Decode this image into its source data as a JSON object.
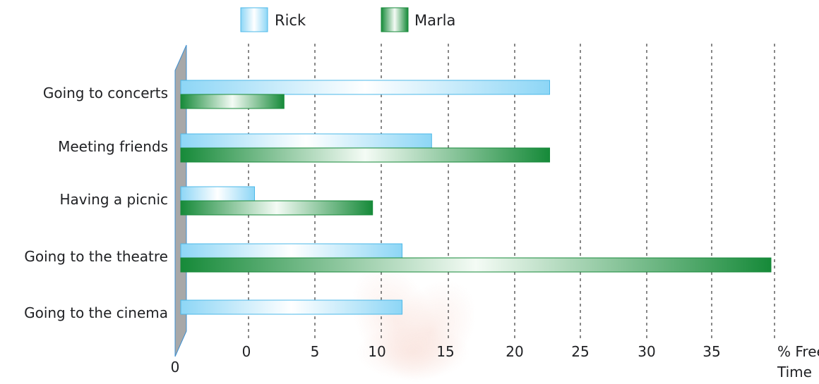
{
  "chart_data": {
    "type": "bar",
    "orientation": "horizontal",
    "categories": [
      "Going to concerts",
      "Meeting friends",
      "Having a picnic",
      "Going to the theatre",
      "Going to the cinema"
    ],
    "series": [
      {
        "name": "Rick",
        "values": [
          25,
          17,
          5,
          15,
          15
        ]
      },
      {
        "name": "Marla",
        "values": [
          7,
          25,
          13,
          40,
          null
        ]
      }
    ],
    "tick_labels": [
      "0",
      "0",
      "5",
      "10",
      "15",
      "20",
      "25",
      "30",
      "35"
    ],
    "xlabel": "% Free Time",
    "xlabel_line1": "% Free",
    "xlabel_line2": "Time",
    "legend_placement": "top",
    "grid": "vertical dashed",
    "colors": {
      "Rick": "#7fd0f4",
      "Marla": "#1b8f3c",
      "axis_wall": "#a8a8a8",
      "wall_edge": "#3d8fd0"
    }
  }
}
